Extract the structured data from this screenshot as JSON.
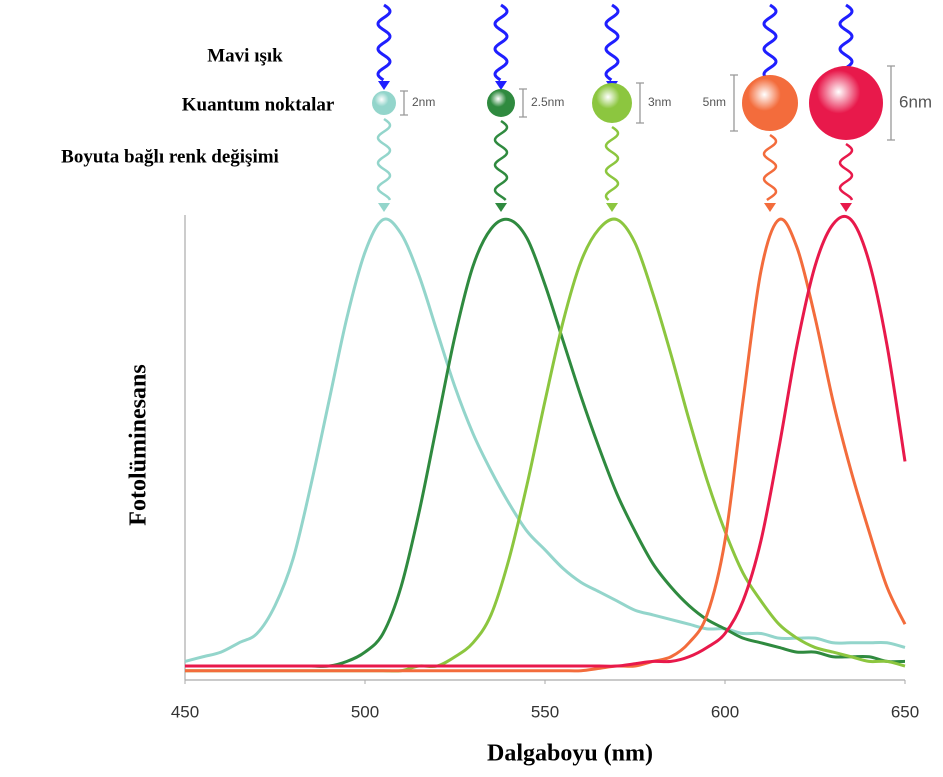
{
  "chart_data": {
    "type": "line",
    "row_labels": [
      "Mavi ışık",
      "Kuantum noktalar",
      "Boyuta bağlı renk değişimi"
    ],
    "xlabel": "Dalgaboyu (nm)",
    "ylabel": "Fotolüminesans",
    "xlim": [
      450,
      650
    ],
    "ylim": [
      0,
      1
    ],
    "xticks": [
      450,
      500,
      550,
      600,
      650
    ],
    "x": [
      450,
      455,
      460,
      465,
      470,
      475,
      480,
      485,
      490,
      495,
      500,
      505,
      510,
      515,
      520,
      525,
      530,
      535,
      540,
      545,
      550,
      555,
      560,
      565,
      570,
      575,
      580,
      585,
      590,
      595,
      600,
      605,
      610,
      615,
      620,
      625,
      630,
      635,
      640,
      645,
      650
    ],
    "series": [
      {
        "color": "#93d5cb",
        "size": "2nm",
        "values": [
          0.04,
          0.05,
          0.06,
          0.08,
          0.1,
          0.16,
          0.26,
          0.42,
          0.6,
          0.78,
          0.92,
          0.99,
          0.96,
          0.87,
          0.75,
          0.63,
          0.53,
          0.45,
          0.38,
          0.32,
          0.28,
          0.24,
          0.21,
          0.19,
          0.17,
          0.15,
          0.14,
          0.13,
          0.12,
          0.11,
          0.11,
          0.1,
          0.1,
          0.09,
          0.09,
          0.09,
          0.08,
          0.08,
          0.08,
          0.08,
          0.07
        ]
      },
      {
        "color": "#2f8a3f",
        "size": "2.5nm",
        "values": [
          0.03,
          0.03,
          0.03,
          0.03,
          0.03,
          0.03,
          0.03,
          0.03,
          0.03,
          0.04,
          0.06,
          0.1,
          0.2,
          0.36,
          0.55,
          0.74,
          0.89,
          0.97,
          0.99,
          0.95,
          0.85,
          0.73,
          0.61,
          0.5,
          0.4,
          0.32,
          0.25,
          0.2,
          0.16,
          0.13,
          0.11,
          0.09,
          0.08,
          0.07,
          0.06,
          0.06,
          0.05,
          0.05,
          0.05,
          0.04,
          0.04
        ]
      },
      {
        "color": "#8cc63f",
        "size": "3nm",
        "values": [
          0.02,
          0.02,
          0.02,
          0.02,
          0.02,
          0.02,
          0.02,
          0.02,
          0.02,
          0.02,
          0.02,
          0.02,
          0.02,
          0.03,
          0.03,
          0.05,
          0.08,
          0.14,
          0.26,
          0.42,
          0.6,
          0.77,
          0.9,
          0.97,
          0.99,
          0.94,
          0.83,
          0.7,
          0.56,
          0.43,
          0.32,
          0.23,
          0.17,
          0.12,
          0.09,
          0.07,
          0.06,
          0.05,
          0.04,
          0.04,
          0.03
        ]
      },
      {
        "color": "#f36c3c",
        "size": "5nm",
        "values": [
          0.02,
          0.02,
          0.02,
          0.02,
          0.02,
          0.02,
          0.02,
          0.02,
          0.02,
          0.02,
          0.02,
          0.02,
          0.02,
          0.02,
          0.02,
          0.02,
          0.02,
          0.02,
          0.02,
          0.02,
          0.02,
          0.02,
          0.02,
          0.025,
          0.03,
          0.03,
          0.04,
          0.05,
          0.08,
          0.14,
          0.3,
          0.6,
          0.88,
          0.99,
          0.93,
          0.78,
          0.6,
          0.45,
          0.32,
          0.2,
          0.12
        ]
      },
      {
        "color": "#e8194b",
        "size": "6nm",
        "values": [
          0.03,
          0.03,
          0.03,
          0.03,
          0.03,
          0.03,
          0.03,
          0.03,
          0.03,
          0.03,
          0.03,
          0.03,
          0.03,
          0.03,
          0.03,
          0.03,
          0.03,
          0.03,
          0.03,
          0.03,
          0.03,
          0.03,
          0.03,
          0.03,
          0.03,
          0.035,
          0.04,
          0.04,
          0.05,
          0.07,
          0.1,
          0.17,
          0.3,
          0.5,
          0.72,
          0.89,
          0.98,
          0.99,
          0.9,
          0.72,
          0.47
        ]
      }
    ]
  }
}
